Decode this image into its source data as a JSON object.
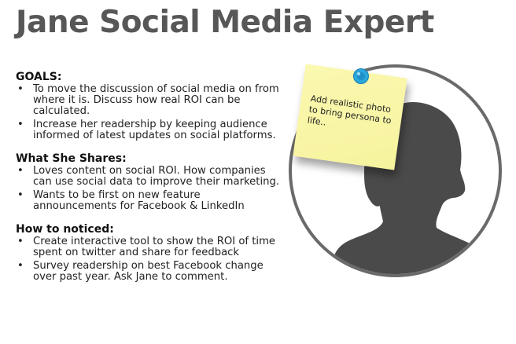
{
  "title": "Jane Social Media Expert",
  "sections": [
    {
      "heading": "GOALS:",
      "items": [
        "To move the discussion of social media on from where it is. Discuss how real ROI can be calculated.",
        "Increase her readership by keeping audience informed of latest updates on social platforms."
      ]
    },
    {
      "heading": "What She Shares:",
      "items": [
        "Loves content on social ROI. How companies can use social data to improve their marketing.",
        "Wants to be first on new feature announcements for Facebook & LinkedIn"
      ]
    },
    {
      "heading": "How to noticed:",
      "items": [
        "Create interactive tool to show the ROI of time spent on twitter and share for feedback",
        "Survey readership on best Facebook change over past year. Ask Jane to comment."
      ]
    }
  ],
  "bullet": "•",
  "sticky_note": {
    "text": "Add realistic photo to bring persona to life.."
  },
  "colors": {
    "title": "#575757",
    "silhouette": "#4a4a4a",
    "circle_border": "#6a6a6a",
    "sticky": "#f8f5a6",
    "pin": "#2aa7dc"
  },
  "icons": {
    "portrait": "person-silhouette-icon",
    "pin": "pushpin-icon"
  }
}
